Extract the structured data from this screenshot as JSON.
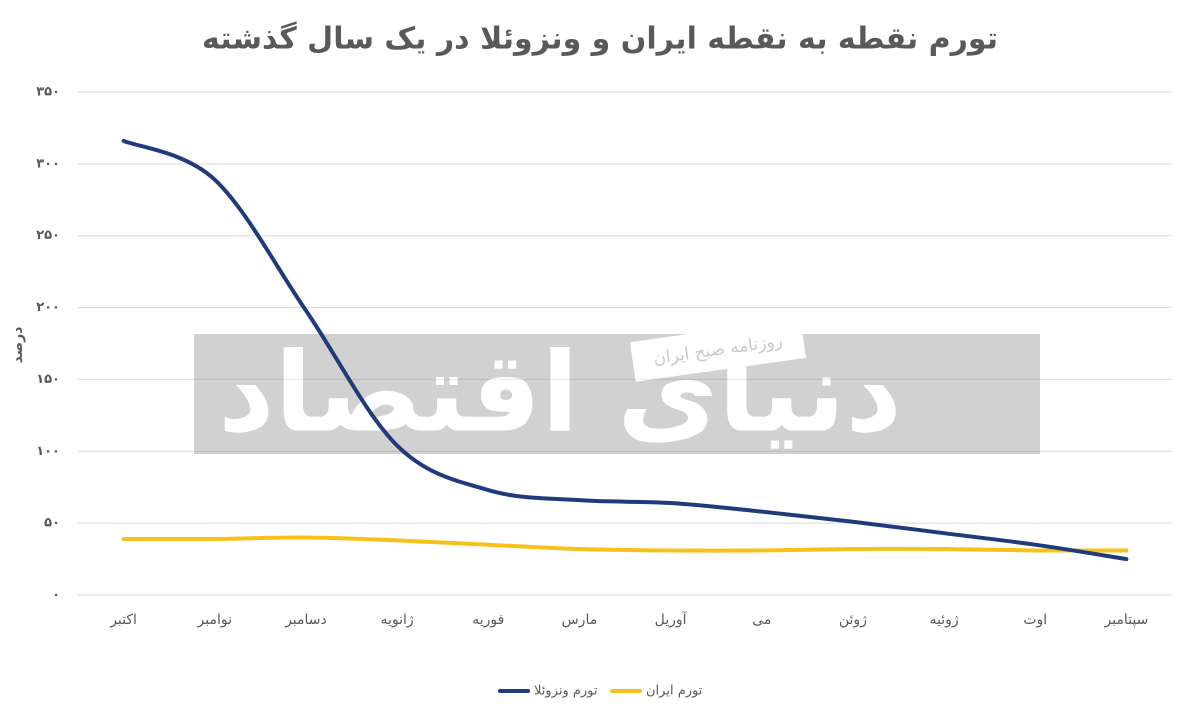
{
  "chart_data": {
    "type": "line",
    "title": "تورم نقطه به نقطه ایران و ونزوئلا در یک سال گذشته",
    "y_label": "درصد",
    "categories": [
      "اکتبر",
      "نوامبر",
      "دسامبر",
      "ژانویه",
      "فوریه",
      "مارس",
      "آوریل",
      "می",
      "ژوئن",
      "ژوئیه",
      "اوت",
      "سپتامبر"
    ],
    "series": [
      {
        "name": "تورم ونزوئلا",
        "color": "#1f3b7c",
        "values": [
          316,
          289,
          198,
          104,
          73,
          66,
          64,
          58,
          51,
          43,
          35,
          25
        ]
      },
      {
        "name": "تورم ایران",
        "color": "#f6c21a",
        "values": [
          39,
          39,
          40,
          38,
          35,
          32,
          31,
          31,
          32,
          32,
          31,
          31
        ]
      }
    ],
    "ylim": [
      0,
      350
    ],
    "yticks": [
      {
        "value": 0,
        "label": "۰"
      },
      {
        "value": 50,
        "label": "۵۰"
      },
      {
        "value": 100,
        "label": "۱۰۰"
      },
      {
        "value": 150,
        "label": "۱۵۰"
      },
      {
        "value": 200,
        "label": "۲۰۰"
      },
      {
        "value": 250,
        "label": "۲۵۰"
      },
      {
        "value": 300,
        "label": "۳۰۰"
      },
      {
        "value": 350,
        "label": "۳۵۰"
      }
    ],
    "grid": true,
    "legend": "bottom",
    "watermark": {
      "logo": "دنیای اقتصاد",
      "tagline": "روزنامه صبح ایران"
    }
  }
}
